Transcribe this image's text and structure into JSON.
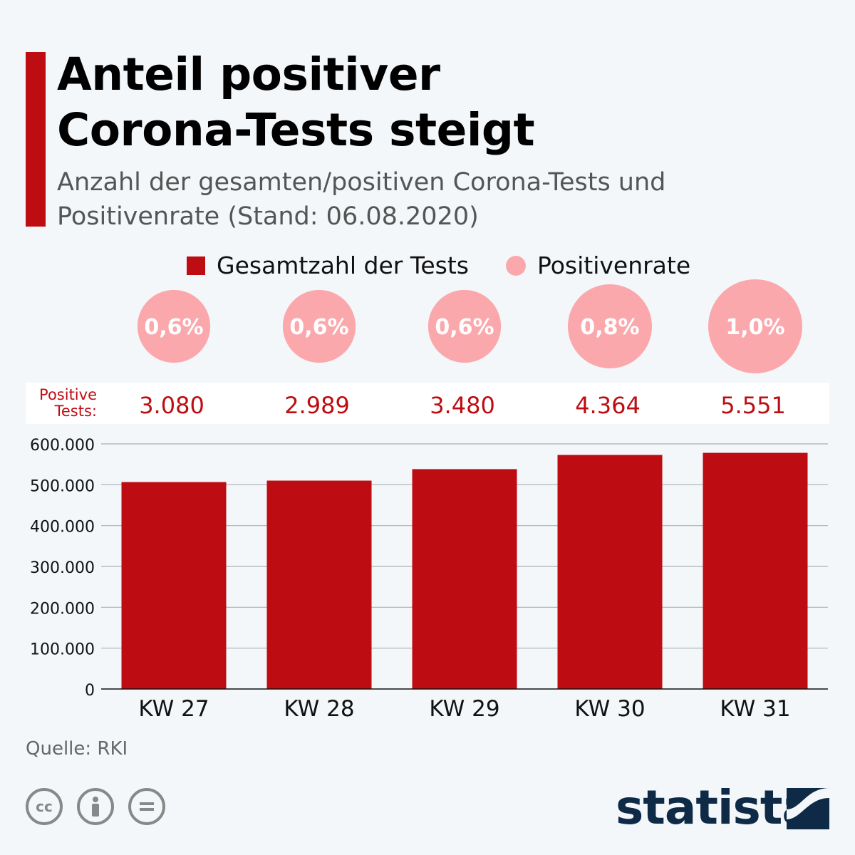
{
  "header": {
    "title_line1": "Anteil positiver",
    "title_line2": "Corona-Tests steigt",
    "subtitle_line1": "Anzahl der gesamten/positiven Corona-Tests und",
    "subtitle_line2": "Positivenrate (Stand: 06.08.2020)"
  },
  "legend": {
    "bars": "Gesamtzahl der Tests",
    "bubbles": "Positivenrate"
  },
  "positive_label_line1": "Positive",
  "positive_label_line2": "Tests:",
  "source": "Quelle: RKI",
  "license_icons": [
    "cc",
    "by",
    "nd"
  ],
  "license_labels": {
    "cc": "cc"
  },
  "brand": "statista",
  "colors": {
    "bar": "#be0d12",
    "bubble": "#fba8ad",
    "accent": "#be0d12",
    "text_red": "#be0d12"
  },
  "chart_data": {
    "type": "bar",
    "categories": [
      "KW 27",
      "KW 28",
      "KW 29",
      "KW 30",
      "KW 31"
    ],
    "series": [
      {
        "name": "Gesamtzahl der Tests",
        "values": [
          506490,
          510103,
          538229,
          572967,
          578099
        ]
      },
      {
        "name": "Positive Tests",
        "labels": [
          "3.080",
          "2.989",
          "3.480",
          "4.364",
          "5.551"
        ]
      },
      {
        "name": "Positivenrate",
        "values": [
          0.6,
          0.6,
          0.6,
          0.8,
          1.0
        ],
        "labels": [
          "0,6%",
          "0,6%",
          "0,6%",
          "0,8%",
          "1,0%"
        ]
      }
    ],
    "ylim": [
      0,
      600000
    ],
    "yticks": [
      0,
      100000,
      200000,
      300000,
      400000,
      500000,
      600000
    ],
    "ytick_labels": [
      "0",
      "100.000",
      "200.000",
      "300.000",
      "400.000",
      "500.000",
      "600.000"
    ],
    "grid": true,
    "legend_position": "top"
  }
}
